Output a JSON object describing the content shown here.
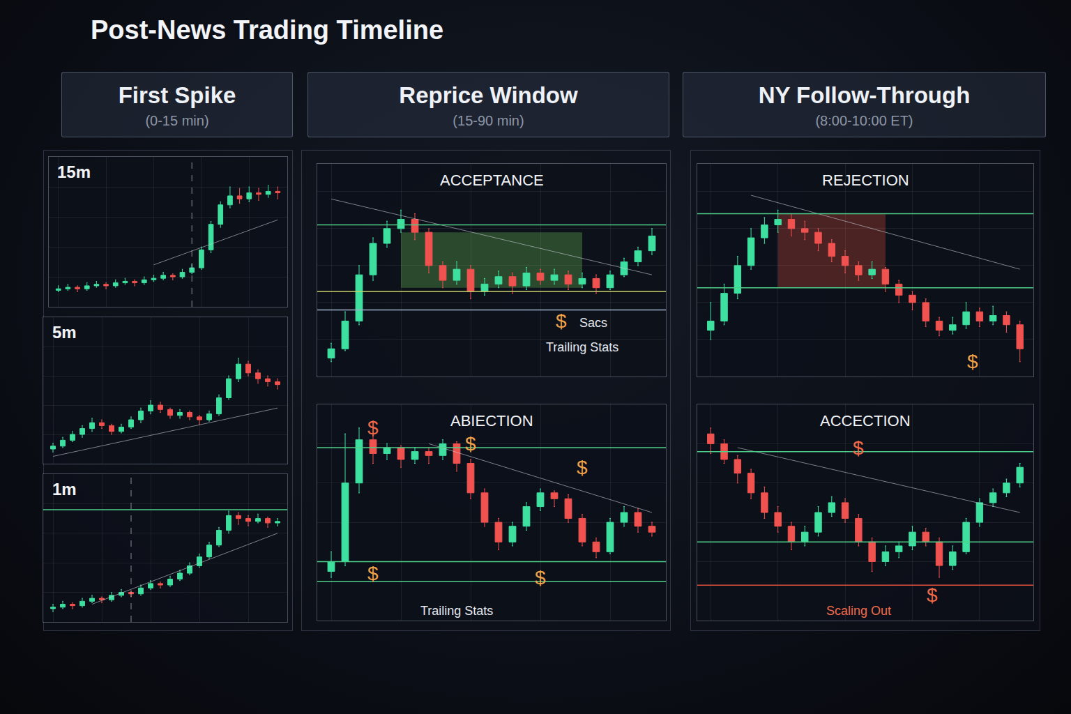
{
  "title": "Post-News Trading Timeline",
  "sections": [
    {
      "title": "First Spike",
      "subtitle": "(0-15 min)"
    },
    {
      "title": "Reprice Window",
      "subtitle": "(15-90 min)"
    },
    {
      "title": "NY Follow-Through",
      "subtitle": "(8:00-10:00 ET)"
    }
  ],
  "chart_data": [
    {
      "type": "candlestick",
      "title": "15m",
      "xlim": [
        -1,
        24
      ],
      "ylim": [
        0,
        100
      ],
      "xticks": [
        0,
        5,
        10,
        15,
        20
      ],
      "yticks": [
        20,
        40,
        60,
        80
      ],
      "grid": true,
      "tick_labels": false,
      "ohlc": [
        [
          11,
          14,
          10,
          12
        ],
        [
          12,
          15,
          11,
          13
        ],
        [
          13,
          14,
          10,
          12
        ],
        [
          12,
          16,
          11,
          14
        ],
        [
          14,
          17,
          13,
          15
        ],
        [
          15,
          16,
          12,
          14
        ],
        [
          14,
          18,
          13,
          16
        ],
        [
          16,
          19,
          15,
          17
        ],
        [
          17,
          18,
          14,
          16
        ],
        [
          16,
          20,
          15,
          18
        ],
        [
          18,
          21,
          17,
          19
        ],
        [
          19,
          23,
          18,
          21
        ],
        [
          21,
          22,
          18,
          20
        ],
        [
          20,
          25,
          19,
          23
        ],
        [
          23,
          28,
          22,
          26
        ],
        [
          26,
          40,
          25,
          38
        ],
        [
          38,
          57,
          36,
          55
        ],
        [
          55,
          70,
          53,
          68
        ],
        [
          68,
          80,
          66,
          74
        ],
        [
          74,
          79,
          69,
          72
        ],
        [
          72,
          80,
          70,
          76
        ],
        [
          76,
          79,
          71,
          75
        ],
        [
          75,
          81,
          73,
          77
        ],
        [
          77,
          80,
          72,
          76
        ]
      ],
      "event_x": 14,
      "trendline": {
        "x": [
          10,
          23
        ],
        "y": [
          28,
          58
        ]
      },
      "levels": [],
      "annotations": []
    },
    {
      "type": "candlestick",
      "title": "5m",
      "xlim": [
        -1,
        24
      ],
      "ylim": [
        0,
        100
      ],
      "xticks": [
        0,
        5,
        10,
        15,
        20
      ],
      "yticks": [
        20,
        40,
        60,
        80
      ],
      "grid": true,
      "tick_labels": false,
      "ohlc": [
        [
          10,
          14,
          8,
          12
        ],
        [
          12,
          18,
          11,
          16
        ],
        [
          16,
          22,
          15,
          20
        ],
        [
          20,
          26,
          18,
          24
        ],
        [
          24,
          31,
          22,
          28
        ],
        [
          28,
          30,
          24,
          26
        ],
        [
          26,
          27,
          20,
          22
        ],
        [
          22,
          27,
          21,
          25
        ],
        [
          25,
          32,
          24,
          30
        ],
        [
          30,
          38,
          28,
          36
        ],
        [
          36,
          43,
          34,
          40
        ],
        [
          40,
          42,
          35,
          37
        ],
        [
          37,
          38,
          31,
          33
        ],
        [
          33,
          37,
          31,
          35
        ],
        [
          35,
          36,
          30,
          32
        ],
        [
          32,
          33,
          27,
          30
        ],
        [
          30,
          36,
          29,
          34
        ],
        [
          34,
          47,
          33,
          45
        ],
        [
          45,
          60,
          44,
          58
        ],
        [
          58,
          72,
          56,
          68
        ],
        [
          68,
          70,
          60,
          62
        ],
        [
          62,
          64,
          55,
          58
        ],
        [
          58,
          60,
          53,
          56
        ],
        [
          56,
          58,
          51,
          54
        ]
      ],
      "trendline": {
        "x": [
          0,
          23
        ],
        "y": [
          5,
          38
        ]
      },
      "levels": [],
      "annotations": []
    },
    {
      "type": "candlestick",
      "title": "1m",
      "xlim": [
        -1,
        24
      ],
      "ylim": [
        0,
        100
      ],
      "xticks": [
        0,
        5,
        10,
        15,
        20
      ],
      "yticks": [
        20,
        40,
        60,
        80
      ],
      "grid": true,
      "tick_labels": false,
      "ohlc": [
        [
          9,
          12,
          7,
          10
        ],
        [
          10,
          14,
          9,
          12
        ],
        [
          12,
          13,
          9,
          11
        ],
        [
          11,
          16,
          10,
          14
        ],
        [
          14,
          18,
          13,
          16
        ],
        [
          16,
          17,
          13,
          15
        ],
        [
          15,
          20,
          14,
          18
        ],
        [
          18,
          22,
          17,
          20
        ],
        [
          20,
          21,
          17,
          19
        ],
        [
          19,
          25,
          18,
          23
        ],
        [
          23,
          28,
          22,
          26
        ],
        [
          26,
          27,
          23,
          25
        ],
        [
          25,
          31,
          24,
          29
        ],
        [
          29,
          35,
          28,
          33
        ],
        [
          33,
          40,
          32,
          38
        ],
        [
          38,
          46,
          37,
          44
        ],
        [
          44,
          54,
          43,
          52
        ],
        [
          52,
          64,
          51,
          62
        ],
        [
          62,
          75,
          60,
          72
        ],
        [
          72,
          74,
          66,
          70
        ],
        [
          70,
          72,
          65,
          68
        ],
        [
          68,
          73,
          67,
          70
        ],
        [
          70,
          71,
          64,
          67
        ],
        [
          67,
          70,
          65,
          68
        ]
      ],
      "event_x": 8,
      "trendline": {
        "x": [
          4,
          23
        ],
        "y": [
          12,
          60
        ]
      },
      "levels": [
        {
          "value": 76,
          "color": "#4fd08a"
        }
      ],
      "annotations": []
    },
    {
      "type": "candlestick",
      "title": "ACCEPTANCE",
      "xlim": [
        -1,
        24
      ],
      "ylim": [
        0,
        115
      ],
      "xticks": [
        0,
        5,
        10,
        15,
        20
      ],
      "yticks": [
        20,
        40,
        60,
        80,
        100
      ],
      "grid": true,
      "tick_labels": false,
      "ohlc": [
        [
          10,
          18,
          8,
          15
        ],
        [
          15,
          35,
          14,
          30
        ],
        [
          30,
          60,
          28,
          55
        ],
        [
          55,
          75,
          52,
          72
        ],
        [
          72,
          84,
          70,
          80
        ],
        [
          80,
          90,
          78,
          85
        ],
        [
          85,
          88,
          74,
          78
        ],
        [
          78,
          80,
          56,
          60
        ],
        [
          60,
          62,
          48,
          52
        ],
        [
          52,
          62,
          50,
          58
        ],
        [
          58,
          60,
          42,
          46
        ],
        [
          46,
          53,
          44,
          50
        ],
        [
          50,
          57,
          48,
          54
        ],
        [
          54,
          56,
          45,
          49
        ],
        [
          49,
          59,
          47,
          56
        ],
        [
          56,
          58,
          50,
          52
        ],
        [
          52,
          58,
          50,
          55
        ],
        [
          55,
          57,
          47,
          50
        ],
        [
          50,
          56,
          48,
          53
        ],
        [
          53,
          55,
          45,
          48
        ],
        [
          48,
          57,
          47,
          55
        ],
        [
          55,
          64,
          54,
          62
        ],
        [
          62,
          70,
          60,
          68
        ],
        [
          68,
          80,
          66,
          76
        ]
      ],
      "trendline": {
        "x": [
          0,
          23
        ],
        "y": [
          96,
          55
        ]
      },
      "zone": {
        "x": [
          5,
          18
        ],
        "y": [
          48,
          78
        ],
        "color": "#6fcf5a"
      },
      "levels": [
        {
          "value": 82,
          "color": "#4fd08a"
        },
        {
          "value": 46,
          "color": "#c8d36a"
        },
        {
          "value": 36,
          "color": "#9fb0c8"
        }
      ],
      "annotations": [
        {
          "text": "$",
          "x": 16.5,
          "y": 30,
          "color": "#f0a24a"
        },
        {
          "text": "Sacs",
          "x": 18.8,
          "y": 29,
          "color": "#e4e8ef"
        },
        {
          "text": "Trailing Stats",
          "x": 18,
          "y": 16,
          "color": "#e4e8ef"
        }
      ]
    },
    {
      "type": "candlestick",
      "title": "ABIECTION",
      "xlim": [
        -1,
        24
      ],
      "ylim": [
        -10,
        100
      ],
      "xticks": [
        0,
        5,
        10,
        15,
        20
      ],
      "yticks": [
        20,
        40,
        60,
        80
      ],
      "grid": true,
      "tick_labels": false,
      "ohlc": [
        [
          15,
          25,
          12,
          20
        ],
        [
          20,
          85,
          18,
          60
        ],
        [
          60,
          88,
          55,
          82
        ],
        [
          82,
          84,
          70,
          75
        ],
        [
          75,
          80,
          72,
          78
        ],
        [
          78,
          79,
          68,
          72
        ],
        [
          72,
          78,
          70,
          76
        ],
        [
          76,
          78,
          70,
          74
        ],
        [
          74,
          82,
          72,
          80
        ],
        [
          80,
          81,
          66,
          70
        ],
        [
          70,
          72,
          52,
          55
        ],
        [
          55,
          57,
          38,
          40
        ],
        [
          40,
          42,
          26,
          30
        ],
        [
          30,
          40,
          28,
          38
        ],
        [
          38,
          50,
          36,
          48
        ],
        [
          48,
          57,
          46,
          55
        ],
        [
          55,
          56,
          48,
          52
        ],
        [
          52,
          54,
          40,
          42
        ],
        [
          42,
          44,
          28,
          30
        ],
        [
          30,
          32,
          22,
          25
        ],
        [
          25,
          42,
          24,
          40
        ],
        [
          40,
          48,
          38,
          45
        ],
        [
          45,
          47,
          35,
          38
        ],
        [
          38,
          40,
          33,
          35
        ]
      ],
      "trendline": {
        "x": [
          7,
          23
        ],
        "y": [
          80,
          45
        ]
      },
      "levels": [
        {
          "value": 78,
          "color": "#4fd08a"
        },
        {
          "value": 20,
          "color": "#4fd08a"
        },
        {
          "value": 10,
          "color": "#4fd08a"
        }
      ],
      "annotations": [
        {
          "text": "$",
          "x": 3,
          "y": 88,
          "color": "#f06a4a"
        },
        {
          "text": "$",
          "x": 10,
          "y": 80,
          "color": "#f0a24a"
        },
        {
          "text": "$",
          "x": 18,
          "y": 68,
          "color": "#f0a24a"
        },
        {
          "text": "$",
          "x": 3,
          "y": 14,
          "color": "#f0a24a"
        },
        {
          "text": "$",
          "x": 15,
          "y": 12,
          "color": "#f0a24a"
        },
        {
          "text": "Trailing Stats",
          "x": 9,
          "y": -5,
          "color": "#e4e8ef"
        }
      ]
    },
    {
      "type": "candlestick",
      "title": "REJECTION",
      "xlim": [
        -1,
        24
      ],
      "ylim": [
        0,
        115
      ],
      "xticks": [
        0,
        5,
        10,
        15,
        20
      ],
      "yticks": [
        20,
        40,
        60,
        80,
        100
      ],
      "grid": true,
      "tick_labels": false,
      "ohlc": [
        [
          25,
          40,
          20,
          30
        ],
        [
          30,
          50,
          28,
          45
        ],
        [
          45,
          65,
          42,
          60
        ],
        [
          60,
          80,
          58,
          75
        ],
        [
          75,
          86,
          72,
          82
        ],
        [
          82,
          90,
          78,
          85
        ],
        [
          85,
          88,
          76,
          80
        ],
        [
          80,
          84,
          74,
          78
        ],
        [
          78,
          80,
          68,
          72
        ],
        [
          72,
          74,
          62,
          65
        ],
        [
          65,
          68,
          56,
          60
        ],
        [
          60,
          62,
          52,
          55
        ],
        [
          55,
          62,
          53,
          58
        ],
        [
          58,
          59,
          46,
          50
        ],
        [
          50,
          52,
          40,
          44
        ],
        [
          44,
          46,
          36,
          40
        ],
        [
          40,
          42,
          27,
          30
        ],
        [
          30,
          32,
          22,
          25
        ],
        [
          25,
          32,
          23,
          28
        ],
        [
          28,
          40,
          26,
          35
        ],
        [
          35,
          37,
          27,
          30
        ],
        [
          30,
          38,
          28,
          33
        ],
        [
          33,
          35,
          24,
          28
        ],
        [
          28,
          30,
          8,
          15
        ]
      ],
      "trendline": {
        "x": [
          3,
          23
        ],
        "y": [
          98,
          58
        ]
      },
      "zone": {
        "x": [
          5,
          13
        ],
        "y": [
          48,
          88
        ],
        "color": "#e0503c"
      },
      "levels": [
        {
          "value": 88,
          "color": "#4fd08a"
        },
        {
          "value": 48,
          "color": "#4fd08a"
        }
      ],
      "annotations": [
        {
          "text": "$",
          "x": 19.5,
          "y": 8,
          "color": "#f0a24a"
        }
      ]
    },
    {
      "type": "candlestick",
      "title": "ACCECTION",
      "xlim": [
        -1,
        24
      ],
      "ylim": [
        -10,
        100
      ],
      "xticks": [
        0,
        5,
        10,
        15,
        20
      ],
      "yticks": [
        20,
        40,
        60,
        80
      ],
      "grid": true,
      "tick_labels": false,
      "ohlc": [
        [
          85,
          88,
          75,
          80
        ],
        [
          80,
          82,
          70,
          72
        ],
        [
          72,
          74,
          60,
          65
        ],
        [
          65,
          67,
          52,
          55
        ],
        [
          55,
          58,
          42,
          45
        ],
        [
          45,
          48,
          35,
          38
        ],
        [
          38,
          40,
          26,
          30
        ],
        [
          30,
          38,
          28,
          35
        ],
        [
          35,
          48,
          33,
          45
        ],
        [
          45,
          53,
          43,
          50
        ],
        [
          50,
          52,
          40,
          42
        ],
        [
          42,
          44,
          28,
          30
        ],
        [
          30,
          32,
          15,
          20
        ],
        [
          20,
          28,
          18,
          25
        ],
        [
          25,
          30,
          22,
          28
        ],
        [
          28,
          38,
          26,
          35
        ],
        [
          35,
          37,
          28,
          30
        ],
        [
          30,
          32,
          12,
          18
        ],
        [
          18,
          28,
          16,
          25
        ],
        [
          25,
          42,
          24,
          40
        ],
        [
          40,
          52,
          38,
          50
        ],
        [
          50,
          57,
          48,
          55
        ],
        [
          55,
          62,
          53,
          60
        ],
        [
          60,
          70,
          58,
          68
        ]
      ],
      "trendline": {
        "x": [
          2,
          23
        ],
        "y": [
          78,
          45
        ]
      },
      "levels": [
        {
          "value": 76,
          "color": "#4fd08a"
        },
        {
          "value": 30,
          "color": "#4fd08a"
        },
        {
          "value": 8,
          "color": "#e0503c"
        }
      ],
      "annotations": [
        {
          "text": "$",
          "x": 11,
          "y": 78,
          "color": "#f06a4a"
        },
        {
          "text": "$",
          "x": 16.5,
          "y": 3,
          "color": "#f06a4a"
        },
        {
          "text": "Scaling Out",
          "x": 11,
          "y": -5,
          "color": "#f06a4a"
        }
      ]
    }
  ]
}
